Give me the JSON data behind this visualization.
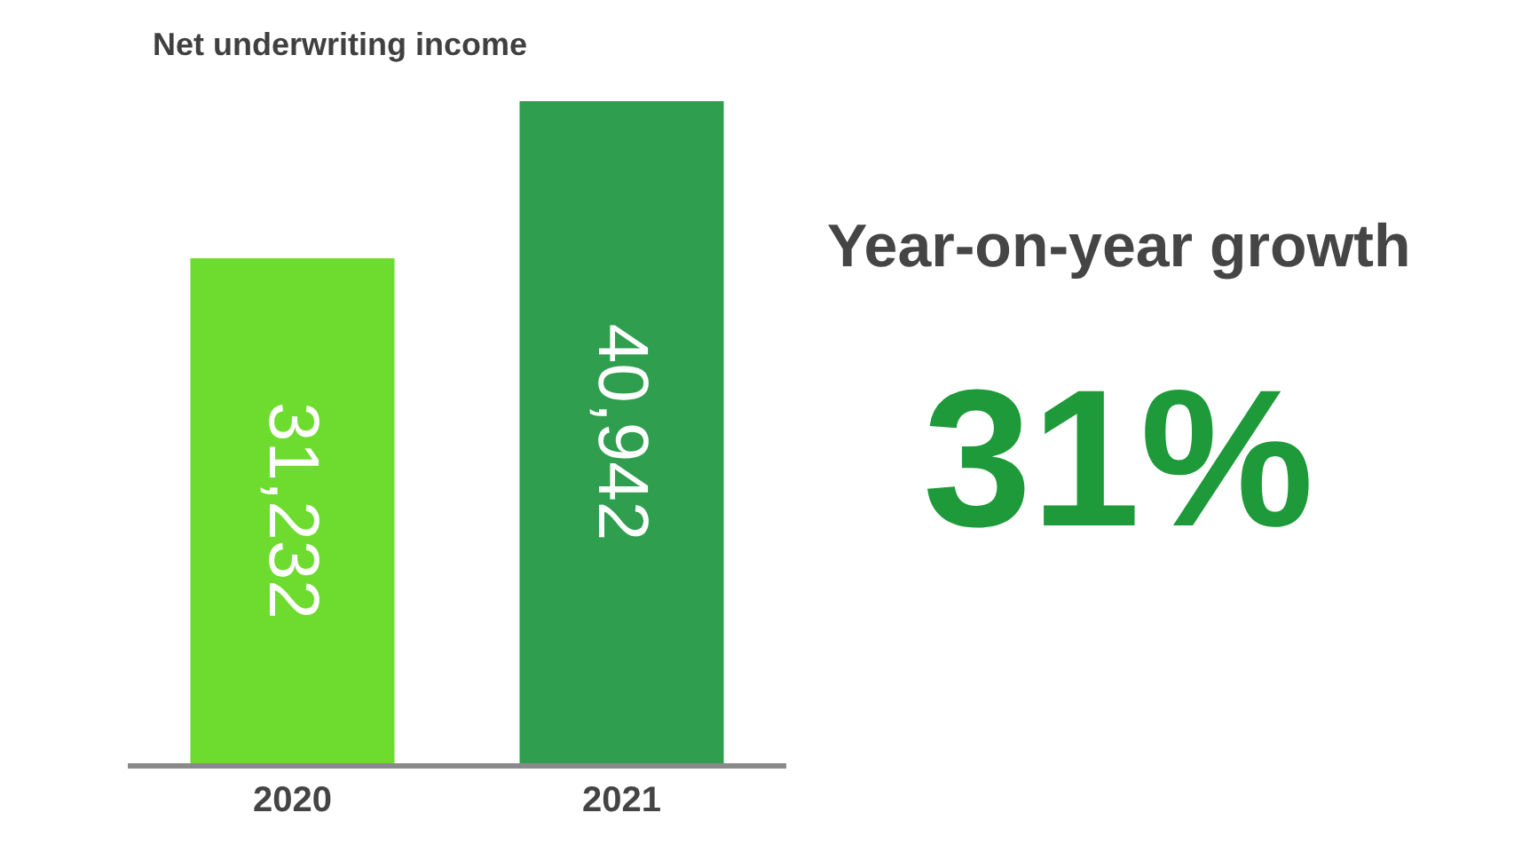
{
  "chart_data": {
    "type": "bar",
    "title": "Net underwriting income",
    "categories": [
      "2020",
      "2021"
    ],
    "values": [
      31232,
      40942
    ],
    "colors": [
      "#6ddc2e",
      "#2f9e4f"
    ],
    "value_labels": [
      "31,232",
      "40,942"
    ],
    "annotations": [
      "Year-on-year growth",
      "31%"
    ]
  }
}
